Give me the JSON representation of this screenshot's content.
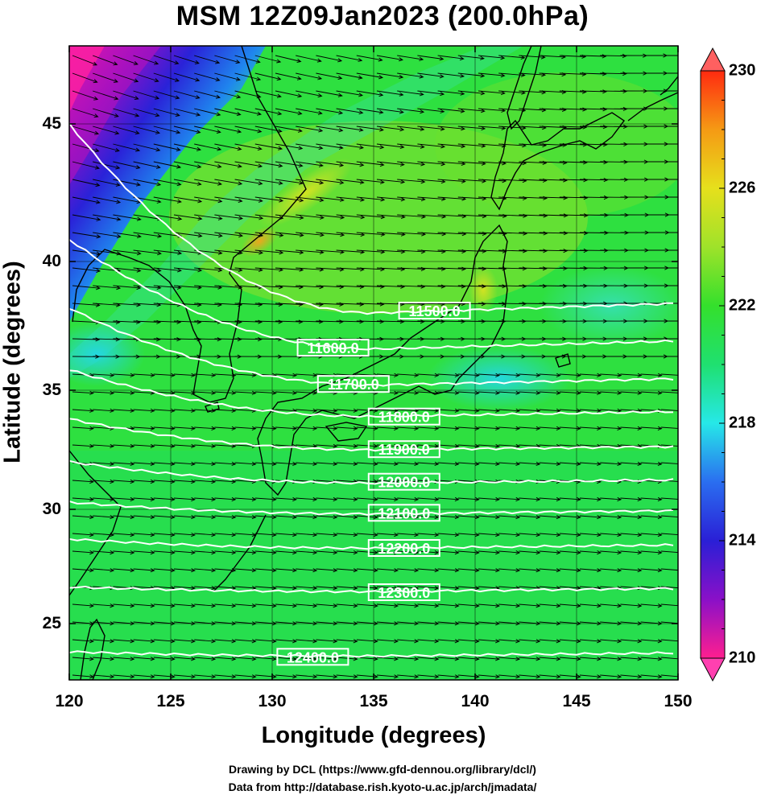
{
  "title": "MSM 12Z09Jan2023 (200.0hPa)",
  "map": {
    "lon_range": [
      120,
      150
    ],
    "lat_range": [
      22.4,
      47.6
    ],
    "x_ticks": [
      "120",
      "125",
      "130",
      "135",
      "140",
      "145",
      "150"
    ],
    "y_ticks": [
      "25",
      "30",
      "35",
      "40",
      "45"
    ],
    "xlabel": "Longitude (degrees)",
    "ylabel": "Latitude  (degrees)",
    "contours": [
      {
        "label": "11500.0",
        "lat_west": null,
        "lat_mid": 38.0,
        "label_lon": 138
      },
      {
        "label": "11600.0",
        "lat_west": null,
        "lat_mid": 36.6,
        "label_lon": 133
      },
      {
        "label": "11700.0",
        "lat_west": null,
        "lat_mid": 35.2,
        "label_lon": 134
      },
      {
        "label": "11800.0",
        "lat_west": null,
        "lat_mid": 33.9,
        "label_lon": 136.5
      },
      {
        "label": "11900.0",
        "lat_west": null,
        "lat_mid": 32.5,
        "label_lon": 136.5
      },
      {
        "label": "12000.0",
        "lat_west": null,
        "lat_mid": 31.1,
        "label_lon": 136.5
      },
      {
        "label": "12100.0",
        "lat_west": null,
        "lat_mid": 29.8,
        "label_lon": 136.5
      },
      {
        "label": "12200.0",
        "lat_west": null,
        "lat_mid": 28.3,
        "label_lon": 136.5
      },
      {
        "label": "12300.0",
        "lat_west": null,
        "lat_mid": 26.4,
        "label_lon": 136.5
      },
      {
        "label": "12400.0",
        "lat_west": null,
        "lat_mid": 23.5,
        "label_lon": 132
      }
    ]
  },
  "colorbar": {
    "range": [
      210,
      230
    ],
    "labels": [
      "230",
      "226",
      "222",
      "218",
      "214",
      "210"
    ],
    "colors": [
      "#ff1f8f",
      "#8a10c8",
      "#2a1fd6",
      "#2a8cf5",
      "#26e8e8",
      "#1fe070",
      "#34e02c",
      "#9fe22a",
      "#e6e01c",
      "#f59a14",
      "#ff2a10"
    ]
  },
  "credits": [
    "Drawing by DCL (https://www.gfd-dennou.org/library/dcl/)",
    "Data from http://database.rish.kyoto-u.ac.jp/arch/jmadata/"
  ]
}
